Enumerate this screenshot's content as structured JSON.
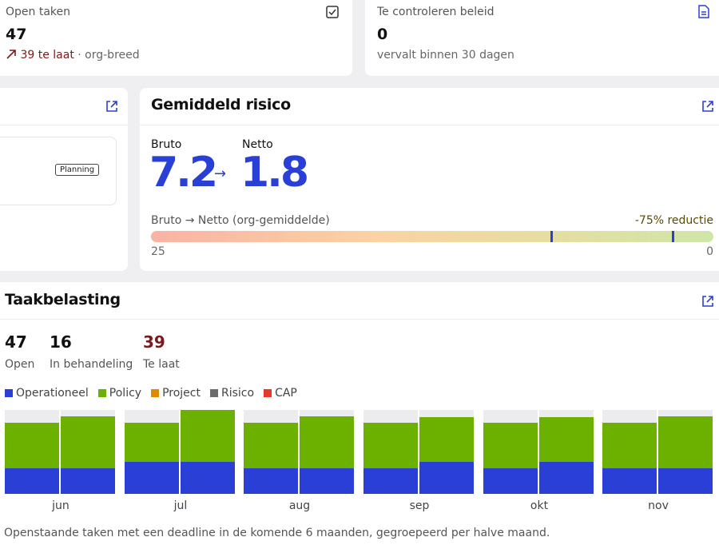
{
  "kpis": {
    "open_tasks": {
      "label": "Open taken",
      "value": "47",
      "late_text": "39 te laat",
      "scope_text": "· org-breed",
      "icon": "checkbox-icon"
    },
    "policy_review": {
      "label": "Te controleren beleid",
      "value": "0",
      "sub_text": "vervalt binnen 30 dagen",
      "icon": "document-icon"
    }
  },
  "left_card": {
    "badge": "Planning"
  },
  "risk": {
    "title": "Gemiddeld risico",
    "gross_label": "Bruto",
    "gross_value": "7.2",
    "net_label": "Netto",
    "net_value": "1.8",
    "arrow": "→",
    "bar_label": "Bruto → Netto (org-gemiddelde)",
    "reduction": "-75% reductie",
    "scale_min": "25",
    "scale_max": "0",
    "scale_range": [
      25,
      0
    ],
    "colors": {
      "accent": "#2a3fd6",
      "reduction": "#5a4a00"
    }
  },
  "workload": {
    "title": "Taakbelasting",
    "stats": [
      {
        "value": "47",
        "label": "Open"
      },
      {
        "value": "16",
        "label": "In behandeling"
      },
      {
        "value": "39",
        "label": "Te laat"
      }
    ],
    "legend": [
      {
        "label": "Operationeel",
        "color": "#2a3fd6"
      },
      {
        "label": "Policy",
        "color": "#6cb000"
      },
      {
        "label": "Project",
        "color": "#e08a00"
      },
      {
        "label": "Risico",
        "color": "#6b6b6b"
      },
      {
        "label": "CAP",
        "color": "#e8372c"
      }
    ],
    "months": [
      "jun",
      "jul",
      "aug",
      "sep",
      "okt",
      "nov"
    ],
    "footnote": "Openstaande taken met een deadline in de komende 6 maanden, gegroepeerd per halve maand.",
    "chart_data": {
      "type": "bar",
      "stacked": true,
      "categories": [
        "jun-1",
        "jun-2",
        "jul-1",
        "jul-2",
        "aug-1",
        "aug-2",
        "sep-1",
        "sep-2",
        "okt-1",
        "okt-2",
        "nov-1",
        "nov-2"
      ],
      "ylim": [
        0,
        105
      ],
      "series": [
        {
          "name": "Operationeel",
          "color": "#2a3fd6",
          "values": [
            32,
            32,
            40,
            40,
            32,
            32,
            32,
            40,
            32,
            40,
            32,
            32
          ]
        },
        {
          "name": "Policy",
          "color": "#6cb000",
          "values": [
            57,
            65,
            49,
            65,
            57,
            65,
            57,
            56,
            57,
            56,
            57,
            65
          ]
        }
      ]
    }
  }
}
